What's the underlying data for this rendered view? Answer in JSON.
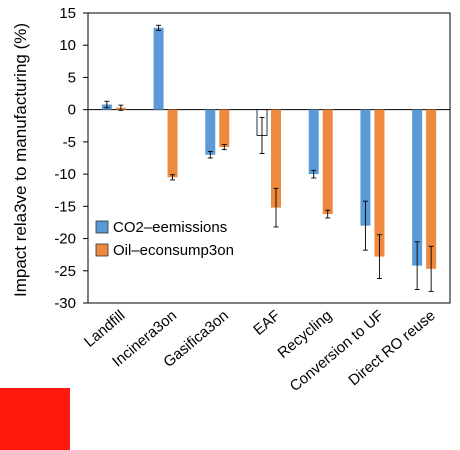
{
  "colors": {
    "co2": "#5b9bd5",
    "oil": "#ed8a3f",
    "red_block": "#ff1a10"
  },
  "chart_data": {
    "type": "bar",
    "title": "",
    "ylabel": "Impact rela3ve to manufacturing (%)",
    "xlabel": "",
    "ylim": [
      -30,
      15
    ],
    "yticks": [
      15,
      10,
      5,
      0,
      -5,
      -10,
      -15,
      -20,
      -25,
      -30
    ],
    "categories": [
      "Landfill",
      "Incinera3on",
      "Gasifica3on",
      "EAF",
      "Recycling",
      "Conversion to UF",
      "Direct RO reuse"
    ],
    "series": [
      {
        "name": "CO2–eemissions",
        "values": [
          0.8,
          12.7,
          -7.0,
          -4.0,
          -10.0,
          -18.0,
          -24.2
        ],
        "errors": [
          0.5,
          0.4,
          0.5,
          2.8,
          0.6,
          3.8,
          3.7
        ],
        "hollow": [
          false,
          false,
          false,
          true,
          false,
          false,
          false
        ]
      },
      {
        "name": "Oil–econsump3on",
        "values": [
          0.3,
          -10.5,
          -5.8,
          -15.2,
          -16.2,
          -22.8,
          -24.7
        ],
        "errors": [
          0.4,
          0.4,
          0.4,
          3.0,
          0.6,
          3.4,
          3.5
        ],
        "hollow": [
          false,
          false,
          false,
          false,
          false,
          false,
          false
        ]
      }
    ],
    "legend": "left-middle",
    "grid": false
  }
}
